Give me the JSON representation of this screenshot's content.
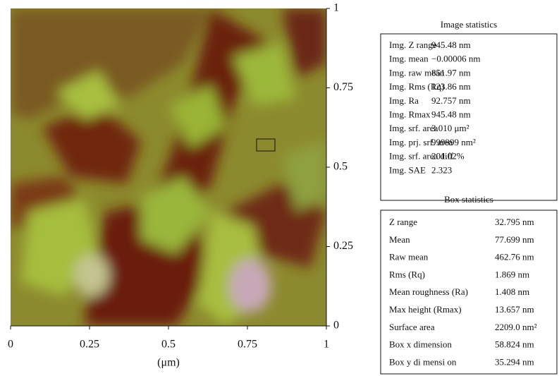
{
  "image": {
    "x_ticks": [
      0,
      0.25,
      0.5,
      0.75,
      1
    ],
    "y_ticks": [
      0,
      0.25,
      0.5,
      0.75,
      1
    ],
    "x_label": "(μm)"
  },
  "image_statistics": {
    "title": "Image statistics",
    "rows": [
      [
        "Img. Z range",
        "945.48 nm"
      ],
      [
        "Img. mean",
        "−0.00006 nm"
      ],
      [
        "Img. raw mean",
        "851.97 nm"
      ],
      [
        "Img. Rms (Rq)",
        "123.86 nm"
      ],
      [
        "Img. Ra",
        "92.757 nm"
      ],
      [
        "Img. Rmax",
        "945.48 nm"
      ],
      [
        "Img. srf. area",
        "3.010 μm²"
      ],
      [
        "Img. prj. srf. area",
        "999999 nm²"
      ],
      [
        "Img. srf. area diff",
        "201.02%"
      ],
      [
        "Img. SAE",
        "2.323"
      ]
    ]
  },
  "box_statistics": {
    "title": "Box statistics",
    "rows": [
      [
        "Z range",
        "32.795 nm"
      ],
      [
        "Mean",
        "77.699 nm"
      ],
      [
        "Raw mean",
        "462.76 nm"
      ],
      [
        "Rms (Rq)",
        "1.869 nm"
      ],
      [
        "Mean roughness (Ra)",
        "1.408 nm"
      ],
      [
        "Max height (Rmax)",
        "13.657 nm"
      ],
      [
        "Surface area",
        "2209.0 nm²"
      ],
      [
        "Box x dimension",
        "58.824 nm"
      ],
      [
        "Box y di mensi on",
        "35.294 nm"
      ]
    ]
  }
}
